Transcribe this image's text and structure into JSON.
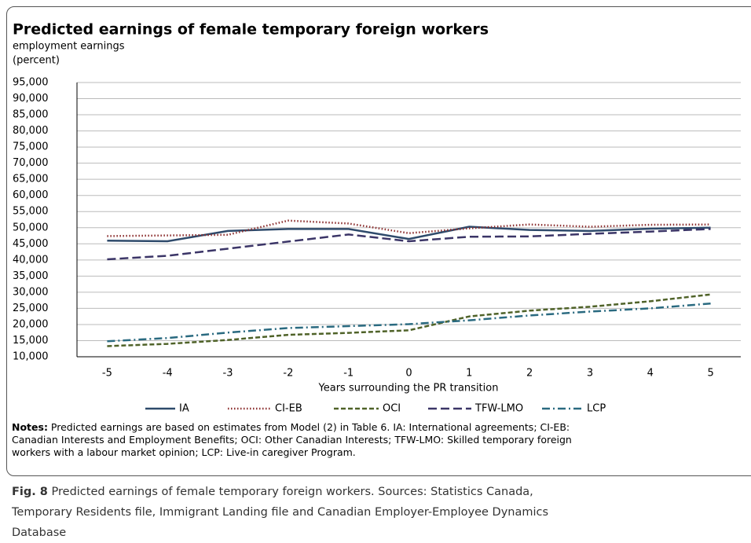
{
  "chart_data": {
    "type": "line",
    "title": "Predicted earnings of female temporary foreign workers",
    "subtitle": [
      "employment earnings",
      "(percent)"
    ],
    "x_label": "Years surrounding the PR transition",
    "x": [
      -5,
      -4,
      -3,
      -2,
      -1,
      0,
      1,
      2,
      3,
      4,
      5
    ],
    "xlim": [
      -5.5,
      5.5
    ],
    "xticks": [
      -5,
      -4,
      -3,
      -2,
      -1,
      0,
      1,
      2,
      3,
      4,
      5
    ],
    "ylim": [
      10000,
      95000
    ],
    "yticks": [
      {
        "value": 10000,
        "label": "10,000"
      },
      {
        "value": 15000,
        "label": "15,000"
      },
      {
        "value": 20000,
        "label": "20,000"
      },
      {
        "value": 25000,
        "label": "25,000"
      },
      {
        "value": 30000,
        "label": "30,000"
      },
      {
        "value": 35000,
        "label": "35,000"
      },
      {
        "value": 40000,
        "label": "40,000"
      },
      {
        "value": 45000,
        "label": "45,000"
      },
      {
        "value": 50000,
        "label": "50,000"
      },
      {
        "value": 55000,
        "label": "55,000"
      },
      {
        "value": 60000,
        "label": "60,000"
      },
      {
        "value": 65000,
        "label": "65,000"
      },
      {
        "value": 70000,
        "label": "70,000"
      },
      {
        "value": 75000,
        "label": "75,000"
      },
      {
        "value": 80000,
        "label": "80,000"
      },
      {
        "value": 85000,
        "label": "85,000"
      },
      {
        "value": 90000,
        "label": "90,000"
      },
      {
        "value": 95000,
        "label": "95,000"
      }
    ],
    "grid": true,
    "legend": "bottom",
    "series": [
      {
        "name": "IA",
        "color": "#2e4a6b",
        "dash": "solid",
        "values": [
          46000,
          45800,
          49000,
          49600,
          49600,
          46500,
          50300,
          49300,
          49000,
          49700,
          50000
        ]
      },
      {
        "name": "CI-EB",
        "color": "#8b2e2e",
        "dash": "dotted",
        "values": [
          47400,
          47600,
          47800,
          52200,
          51300,
          48300,
          49800,
          51000,
          50300,
          50900,
          51000
        ]
      },
      {
        "name": "OCI",
        "color": "#4f6228",
        "dash": "dashed",
        "values": [
          13300,
          14000,
          15200,
          16800,
          17400,
          18200,
          22500,
          24300,
          25500,
          27200,
          29300
        ]
      },
      {
        "name": "TFW-LMO",
        "color": "#3b3567",
        "dash": "longdash",
        "values": [
          40200,
          41300,
          43500,
          45700,
          47900,
          45800,
          47200,
          47300,
          48100,
          48800,
          49600
        ]
      },
      {
        "name": "LCP",
        "color": "#2a6a80",
        "dash": "dashdot",
        "values": [
          14800,
          15800,
          17500,
          18900,
          19500,
          20100,
          21300,
          22800,
          24000,
          25000,
          26500
        ]
      }
    ]
  },
  "notes": {
    "label": "Notes:",
    "lines": [
      " Predicted earnings are based on estimates from Model (2) in Table 6. IA: International agreements; CI-EB:",
      "Canadian Interests and Employment Benefits; OCI: Other Canadian Interests; TFW-LMO: Skilled temporary foreign",
      "workers with a labour market opinion; LCP: Live-in caregiver Program."
    ]
  },
  "caption": {
    "label": "Fig. 8",
    "text": " Predicted earnings of female temporary foreign workers. Sources: Statistics Canada, Temporary Residents file, Immigrant Landing file and Canadian Employer-Employee Dynamics Database"
  }
}
